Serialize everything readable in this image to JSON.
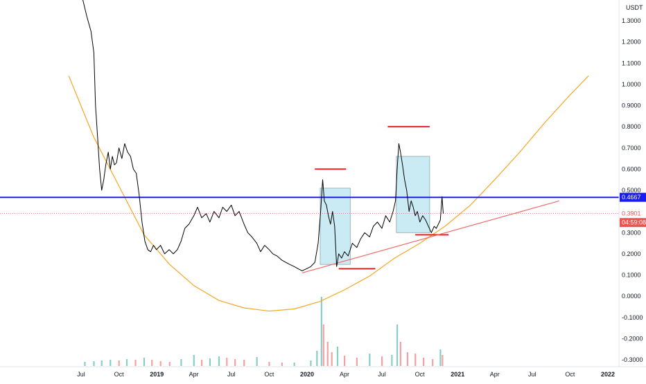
{
  "chart_data": {
    "type": "line",
    "currency_label": "USDT",
    "y_ticks": [
      "1.3000",
      "1.2000",
      "1.1000",
      "1.0000",
      "0.9000",
      "0.8000",
      "0.7000",
      "0.6000",
      "0.5000",
      "0.4000",
      "0.3000",
      "0.2000",
      "0.1000",
      "0.0000",
      "-0.1000",
      "-0.2000",
      "-0.3000"
    ],
    "y_tick_values": [
      1.3,
      1.2,
      1.1,
      1.0,
      0.9,
      0.8,
      0.7,
      0.6,
      0.5,
      0.4,
      0.3,
      0.2,
      0.1,
      0.0,
      -0.1,
      -0.2,
      -0.3
    ],
    "x_ticks": [
      {
        "label": "Jul",
        "date": "2018-07-01",
        "bold": false
      },
      {
        "label": "Oct",
        "date": "2018-10-01",
        "bold": false
      },
      {
        "label": "2019",
        "date": "2019-01-01",
        "bold": true
      },
      {
        "label": "Apr",
        "date": "2019-04-01",
        "bold": false
      },
      {
        "label": "Jul",
        "date": "2019-07-01",
        "bold": false
      },
      {
        "label": "Oct",
        "date": "2019-10-01",
        "bold": false
      },
      {
        "label": "2020",
        "date": "2020-01-01",
        "bold": true
      },
      {
        "label": "Apr",
        "date": "2020-04-01",
        "bold": false
      },
      {
        "label": "Jul",
        "date": "2020-07-01",
        "bold": false
      },
      {
        "label": "Oct",
        "date": "2020-10-01",
        "bold": false
      },
      {
        "label": "2021",
        "date": "2021-01-01",
        "bold": true
      },
      {
        "label": "Apr",
        "date": "2021-04-01",
        "bold": false
      },
      {
        "label": "Jul",
        "date": "2021-07-01",
        "bold": false
      },
      {
        "label": "Oct",
        "date": "2021-10-01",
        "bold": false
      },
      {
        "label": "2022",
        "date": "2022-01-01",
        "bold": true
      }
    ],
    "price_series": {
      "color": "#000000",
      "points": [
        [
          "2018-07-05",
          1.4
        ],
        [
          "2018-07-15",
          1.32
        ],
        [
          "2018-07-25",
          1.25
        ],
        [
          "2018-08-01",
          1.15
        ],
        [
          "2018-08-05",
          0.9
        ],
        [
          "2018-08-10",
          0.75
        ],
        [
          "2018-08-15",
          0.6
        ],
        [
          "2018-08-20",
          0.5
        ],
        [
          "2018-08-25",
          0.55
        ],
        [
          "2018-08-30",
          0.62
        ],
        [
          "2018-09-05",
          0.68
        ],
        [
          "2018-09-10",
          0.6
        ],
        [
          "2018-09-15",
          0.66
        ],
        [
          "2018-09-20",
          0.62
        ],
        [
          "2018-09-25",
          0.63
        ],
        [
          "2018-10-01",
          0.7
        ],
        [
          "2018-10-08",
          0.65
        ],
        [
          "2018-10-15",
          0.72
        ],
        [
          "2018-10-22",
          0.68
        ],
        [
          "2018-10-29",
          0.66
        ],
        [
          "2018-11-05",
          0.6
        ],
        [
          "2018-11-12",
          0.58
        ],
        [
          "2018-11-19",
          0.48
        ],
        [
          "2018-11-26",
          0.35
        ],
        [
          "2018-12-03",
          0.26
        ],
        [
          "2018-12-10",
          0.22
        ],
        [
          "2018-12-17",
          0.21
        ],
        [
          "2018-12-24",
          0.24
        ],
        [
          "2018-12-31",
          0.22
        ],
        [
          "2019-01-10",
          0.24
        ],
        [
          "2019-01-20",
          0.2
        ],
        [
          "2019-01-31",
          0.22
        ],
        [
          "2019-02-10",
          0.2
        ],
        [
          "2019-02-20",
          0.22
        ],
        [
          "2019-03-01",
          0.26
        ],
        [
          "2019-03-10",
          0.32
        ],
        [
          "2019-03-20",
          0.34
        ],
        [
          "2019-04-01",
          0.38
        ],
        [
          "2019-04-10",
          0.42
        ],
        [
          "2019-04-20",
          0.37
        ],
        [
          "2019-05-01",
          0.39
        ],
        [
          "2019-05-10",
          0.35
        ],
        [
          "2019-05-20",
          0.4
        ],
        [
          "2019-06-01",
          0.37
        ],
        [
          "2019-06-10",
          0.42
        ],
        [
          "2019-06-20",
          0.4
        ],
        [
          "2019-07-01",
          0.43
        ],
        [
          "2019-07-10",
          0.38
        ],
        [
          "2019-07-20",
          0.4
        ],
        [
          "2019-08-01",
          0.34
        ],
        [
          "2019-08-10",
          0.3
        ],
        [
          "2019-08-20",
          0.28
        ],
        [
          "2019-09-01",
          0.25
        ],
        [
          "2019-09-10",
          0.21
        ],
        [
          "2019-09-20",
          0.24
        ],
        [
          "2019-10-01",
          0.22
        ],
        [
          "2019-10-10",
          0.2
        ],
        [
          "2019-10-20",
          0.19
        ],
        [
          "2019-11-01",
          0.17
        ],
        [
          "2019-11-10",
          0.16
        ],
        [
          "2019-11-20",
          0.15
        ],
        [
          "2019-12-01",
          0.14
        ],
        [
          "2019-12-10",
          0.13
        ],
        [
          "2019-12-20",
          0.12
        ],
        [
          "2019-12-31",
          0.13
        ],
        [
          "2020-01-10",
          0.14
        ],
        [
          "2020-01-20",
          0.16
        ],
        [
          "2020-01-28",
          0.25
        ],
        [
          "2020-02-03",
          0.4
        ],
        [
          "2020-02-08",
          0.55
        ],
        [
          "2020-02-12",
          0.45
        ],
        [
          "2020-02-17",
          0.43
        ],
        [
          "2020-02-22",
          0.38
        ],
        [
          "2020-02-27",
          0.34
        ],
        [
          "2020-03-03",
          0.4
        ],
        [
          "2020-03-08",
          0.33
        ],
        [
          "2020-03-13",
          0.14
        ],
        [
          "2020-03-18",
          0.2
        ],
        [
          "2020-03-25",
          0.18
        ],
        [
          "2020-04-01",
          0.21
        ],
        [
          "2020-04-10",
          0.19
        ],
        [
          "2020-04-20",
          0.25
        ],
        [
          "2020-05-01",
          0.23
        ],
        [
          "2020-05-10",
          0.27
        ],
        [
          "2020-05-20",
          0.3
        ],
        [
          "2020-06-01",
          0.28
        ],
        [
          "2020-06-10",
          0.33
        ],
        [
          "2020-06-20",
          0.35
        ],
        [
          "2020-07-01",
          0.32
        ],
        [
          "2020-07-10",
          0.38
        ],
        [
          "2020-07-20",
          0.35
        ],
        [
          "2020-07-28",
          0.4
        ],
        [
          "2020-08-03",
          0.45
        ],
        [
          "2020-08-07",
          0.6
        ],
        [
          "2020-08-11",
          0.72
        ],
        [
          "2020-08-15",
          0.68
        ],
        [
          "2020-08-20",
          0.62
        ],
        [
          "2020-08-25",
          0.55
        ],
        [
          "2020-08-30",
          0.5
        ],
        [
          "2020-09-05",
          0.4
        ],
        [
          "2020-09-10",
          0.45
        ],
        [
          "2020-09-15",
          0.42
        ],
        [
          "2020-09-20",
          0.38
        ],
        [
          "2020-09-25",
          0.4
        ],
        [
          "2020-10-01",
          0.35
        ],
        [
          "2020-10-08",
          0.38
        ],
        [
          "2020-10-15",
          0.36
        ],
        [
          "2020-10-22",
          0.33
        ],
        [
          "2020-10-29",
          0.3
        ],
        [
          "2020-11-05",
          0.33
        ],
        [
          "2020-11-10",
          0.32
        ],
        [
          "2020-11-15",
          0.34
        ],
        [
          "2020-11-20",
          0.36
        ],
        [
          "2020-11-24",
          0.47
        ],
        [
          "2020-11-27",
          0.39
        ]
      ]
    },
    "current_price": 0.3901,
    "current_price_label": "0.3901",
    "countdown_label": "04:59:08",
    "horizontal_line": {
      "value": 0.4667,
      "label": "0.4667",
      "color": "#1a1af2"
    },
    "resistance_lines": [
      {
        "x1": "2020-01-20",
        "x2": "2020-04-05",
        "y": 0.6,
        "color": "#e8201f"
      },
      {
        "x1": "2020-07-15",
        "x2": "2020-10-25",
        "y": 0.8,
        "color": "#e8201f"
      },
      {
        "x1": "2020-03-18",
        "x2": "2020-06-15",
        "y": 0.13,
        "color": "#e8201f"
      },
      {
        "x1": "2020-09-20",
        "x2": "2020-12-10",
        "y": 0.29,
        "color": "#e8201f"
      }
    ],
    "trendline": {
      "x1": "2019-12-20",
      "y1": 0.11,
      "x2": "2021-09-05",
      "y2": 0.45,
      "color": "#f26a6a"
    },
    "boxes": [
      {
        "x1": "2020-02-02",
        "x2": "2020-04-15",
        "y1": 0.15,
        "y2": 0.51,
        "color": "#b8e4ef"
      },
      {
        "x1": "2020-08-05",
        "x2": "2020-10-25",
        "y1": 0.3,
        "y2": 0.66,
        "color": "#b8e4ef"
      }
    ],
    "parabola": {
      "color": "#f5a623",
      "points": [
        [
          "2018-06-01",
          1.04
        ],
        [
          "2018-08-01",
          0.75
        ],
        [
          "2018-10-01",
          0.52
        ],
        [
          "2018-12-01",
          0.29
        ],
        [
          "2019-02-01",
          0.15
        ],
        [
          "2019-04-01",
          0.05
        ],
        [
          "2019-06-01",
          -0.02
        ],
        [
          "2019-08-01",
          -0.055
        ],
        [
          "2019-10-01",
          -0.07
        ],
        [
          "2019-12-01",
          -0.06
        ],
        [
          "2020-02-01",
          -0.025
        ],
        [
          "2020-04-01",
          0.03
        ],
        [
          "2020-06-01",
          0.095
        ],
        [
          "2020-08-01",
          0.18
        ],
        [
          "2020-10-01",
          0.25
        ],
        [
          "2020-12-01",
          0.33
        ],
        [
          "2021-02-01",
          0.43
        ],
        [
          "2021-04-01",
          0.55
        ],
        [
          "2021-06-01",
          0.68
        ],
        [
          "2021-08-01",
          0.82
        ],
        [
          "2021-10-01",
          0.95
        ],
        [
          "2021-11-15",
          1.04
        ]
      ]
    },
    "volume_series": {
      "up_color": "#26a69a",
      "down_color": "#ef5350",
      "max_volume": 100,
      "bars": [
        [
          "2018-07-10",
          6
        ],
        [
          "2018-08-01",
          7
        ],
        [
          "2018-08-20",
          8
        ],
        [
          "2018-09-10",
          9
        ],
        [
          "2018-10-01",
          8
        ],
        [
          "2018-10-20",
          10
        ],
        [
          "2018-11-10",
          9
        ],
        [
          "2018-12-01",
          12
        ],
        [
          "2018-12-20",
          9
        ],
        [
          "2019-01-10",
          7
        ],
        [
          "2019-02-01",
          6
        ],
        [
          "2019-03-01",
          10
        ],
        [
          "2019-04-01",
          16
        ],
        [
          "2019-04-20",
          9
        ],
        [
          "2019-05-10",
          11
        ],
        [
          "2019-06-01",
          14
        ],
        [
          "2019-06-20",
          12
        ],
        [
          "2019-07-10",
          10
        ],
        [
          "2019-08-01",
          9
        ],
        [
          "2019-09-01",
          13
        ],
        [
          "2019-10-01",
          6
        ],
        [
          "2019-11-01",
          5
        ],
        [
          "2019-12-01",
          5
        ],
        [
          "2020-01-10",
          8
        ],
        [
          "2020-01-25",
          22
        ],
        [
          "2020-02-05",
          100
        ],
        [
          "2020-02-10",
          60
        ],
        [
          "2020-02-20",
          35
        ],
        [
          "2020-03-01",
          20
        ],
        [
          "2020-03-15",
          28
        ],
        [
          "2020-04-01",
          15
        ],
        [
          "2020-05-01",
          12
        ],
        [
          "2020-06-01",
          18
        ],
        [
          "2020-07-01",
          14
        ],
        [
          "2020-07-25",
          16
        ],
        [
          "2020-08-07",
          60
        ],
        [
          "2020-08-15",
          35
        ],
        [
          "2020-09-01",
          20
        ],
        [
          "2020-09-20",
          18
        ],
        [
          "2020-10-10",
          12
        ],
        [
          "2020-11-01",
          10
        ],
        [
          "2020-11-20",
          24
        ],
        [
          "2020-11-25",
          16
        ]
      ]
    }
  }
}
